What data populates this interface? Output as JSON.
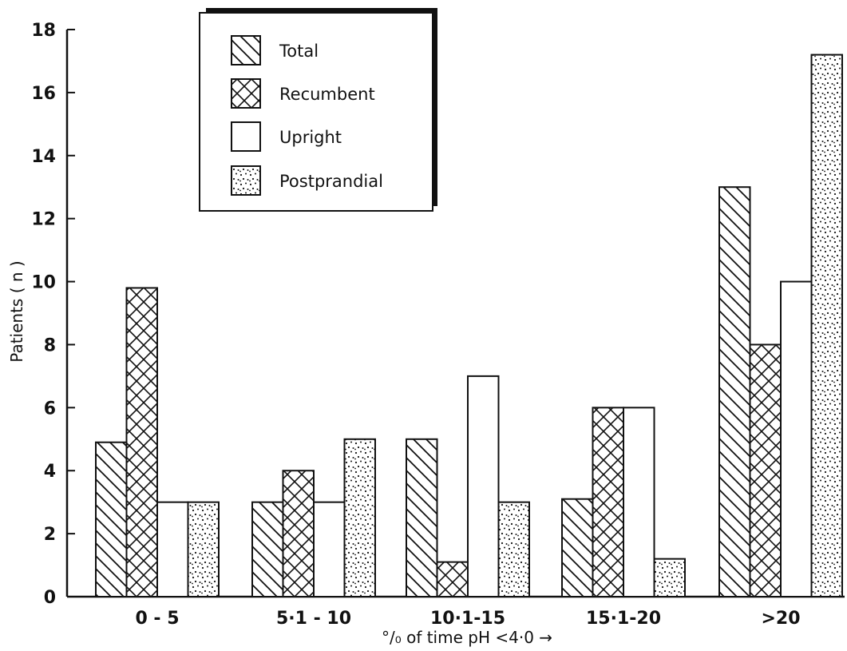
{
  "chart_data": {
    "type": "bar",
    "title": "",
    "xlabel": "°/₀ of time pH <4·0 →",
    "ylabel": "Patients ( n )",
    "ylim": [
      0,
      18
    ],
    "yticks": [
      0,
      2,
      4,
      6,
      8,
      10,
      12,
      14,
      16,
      18
    ],
    "grid": false,
    "legend_position": "top-center",
    "categories": [
      "0 - 5",
      "5·1 -  10",
      "10·1-15",
      "15·1-20",
      ">20"
    ],
    "series": [
      {
        "name": "Total",
        "pattern": "diagonal-hatch",
        "values": [
          4.9,
          3.0,
          5.0,
          3.1,
          13.0
        ]
      },
      {
        "name": "Recumbent",
        "pattern": "cross-hatch",
        "values": [
          9.8,
          4.0,
          1.1,
          6.0,
          8.0
        ]
      },
      {
        "name": "Upright",
        "pattern": "empty",
        "values": [
          3.0,
          3.0,
          7.0,
          6.0,
          10.0
        ]
      },
      {
        "name": "Postprandial",
        "pattern": "dotted",
        "values": [
          3.0,
          5.0,
          3.0,
          1.2,
          17.2
        ]
      }
    ]
  }
}
